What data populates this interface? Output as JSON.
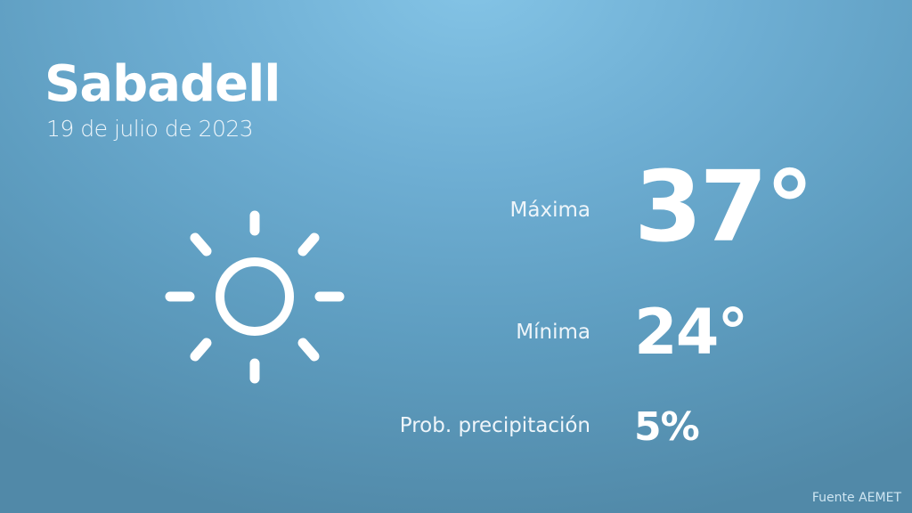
{
  "city": "Sabadell",
  "date": "19 de julio de 2023",
  "weather_icon": "sun-icon",
  "stats": {
    "max_label": "Máxima",
    "max_value": "37°",
    "min_label": "Mínima",
    "min_value": "24°",
    "precip_label": "Prob. precipitación",
    "precip_value": "5%"
  },
  "source": "Fuente AEMET",
  "colors": {
    "background_top": "#84c4e6",
    "background_bottom": "#5189a8",
    "text": "#ffffff"
  }
}
